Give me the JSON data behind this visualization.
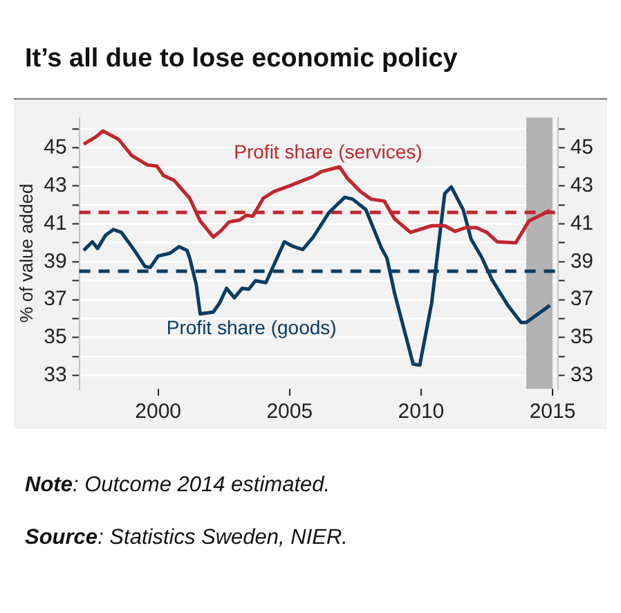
{
  "chart_data": {
    "type": "line",
    "title": "It’s all due to lose economic policy",
    "ylabel": "% of value added",
    "series": [
      {
        "name": "Profit share (services)",
        "color": "#c0272d",
        "x": [
          1997.17,
          1997.65,
          1997.9,
          1998.5,
          1999.0,
          1999.6,
          1999.95,
          2000.2,
          2000.6,
          2001.2,
          2001.6,
          2002.1,
          2002.4,
          2002.7,
          2003.1,
          2003.35,
          2003.6,
          2004.0,
          2004.4,
          2005.0,
          2005.9,
          2006.2,
          2006.9,
          2007.2,
          2007.7,
          2008.1,
          2008.6,
          2009.0,
          2009.6,
          2010.4,
          2010.9,
          2011.3,
          2011.7,
          2012.1,
          2012.5,
          2012.9,
          2013.6,
          2014.1,
          2014.9
        ],
        "values": [
          45.2,
          45.6,
          45.9,
          45.45,
          44.6,
          44.1,
          44.05,
          43.55,
          43.3,
          42.35,
          41.15,
          40.3,
          40.65,
          41.1,
          41.2,
          41.45,
          41.4,
          42.35,
          42.7,
          43.0,
          43.5,
          43.75,
          44.0,
          43.4,
          42.7,
          42.3,
          42.2,
          41.25,
          40.55,
          40.9,
          40.9,
          40.6,
          40.8,
          40.8,
          40.55,
          40.05,
          40.0,
          41.15,
          41.7
        ]
      },
      {
        "name": "Profit share (goods)",
        "color": "#0b3d62",
        "x": [
          1997.17,
          1997.5,
          1997.7,
          1998.0,
          1998.3,
          1998.6,
          1999.1,
          1999.5,
          1999.7,
          2000.0,
          2000.45,
          2000.8,
          2001.1,
          2001.2,
          2001.45,
          2001.6,
          2002.1,
          2002.35,
          2002.6,
          2002.9,
          2003.2,
          2003.45,
          2003.7,
          2004.1,
          2004.8,
          2005.15,
          2005.5,
          2005.9,
          2006.5,
          2007.1,
          2007.4,
          2007.9,
          2008.5,
          2008.7,
          2009.0,
          2009.7,
          2009.95,
          2010.4,
          2010.9,
          2011.15,
          2011.6,
          2011.9,
          2012.3,
          2012.7,
          2013.3,
          2013.8,
          2014.0,
          2014.9
        ],
        "values": [
          39.6,
          40.05,
          39.7,
          40.4,
          40.7,
          40.55,
          39.6,
          38.75,
          38.7,
          39.3,
          39.45,
          39.8,
          39.6,
          39.2,
          37.8,
          36.25,
          36.35,
          36.85,
          37.6,
          37.1,
          37.6,
          37.55,
          38.0,
          37.9,
          40.05,
          39.8,
          39.65,
          40.3,
          41.6,
          42.4,
          42.3,
          41.75,
          39.7,
          39.2,
          37.3,
          33.6,
          33.55,
          36.8,
          42.6,
          42.95,
          41.75,
          40.2,
          39.25,
          38.05,
          36.7,
          35.8,
          35.8,
          36.7
        ]
      }
    ],
    "xlim": [
      1997,
      2015.2
    ],
    "xticks": [
      2000,
      2005,
      2010,
      2015
    ],
    "ylim": [
      32.3,
      46.6
    ],
    "yticks": [
      33,
      {
        "value": 34,
        "label": null
      },
      35,
      {
        "value": 36,
        "label": null
      },
      37,
      {
        "value": 38,
        "label": null
      },
      39,
      {
        "value": 40,
        "label": null
      },
      41,
      {
        "value": 42,
        "label": null
      },
      43,
      {
        "value": 44,
        "label": null
      },
      45,
      {
        "value": 46,
        "label": null
      }
    ],
    "y2lim": [
      32.3,
      46.6
    ],
    "y2ticks": [
      33,
      {
        "value": 34,
        "label": null
      },
      35,
      {
        "value": 36,
        "label": null
      },
      37,
      {
        "value": 38,
        "label": null
      },
      39,
      {
        "value": 40,
        "label": null
      },
      41,
      {
        "value": 42,
        "label": null
      },
      43,
      {
        "value": 44,
        "label": null
      },
      45,
      {
        "value": 46,
        "label": null
      }
    ],
    "ref_lines": [
      {
        "axis": "y",
        "value": 41.6,
        "color": "#c0272d",
        "line_style": "dashed"
      },
      {
        "axis": "y",
        "value": 38.5,
        "color": "#0b3d62",
        "line_style": "dashed"
      }
    ],
    "bands": [
      {
        "axis": "x",
        "from": 2014,
        "to": 2015,
        "color": "#b3b3b3"
      }
    ],
    "grid": "y",
    "legend": false,
    "marker": "none",
    "line_style": "solid",
    "annotations": [
      "Note: Outcome 2014 estimated.",
      "Source: Statistics Sweden, NIER."
    ]
  }
}
